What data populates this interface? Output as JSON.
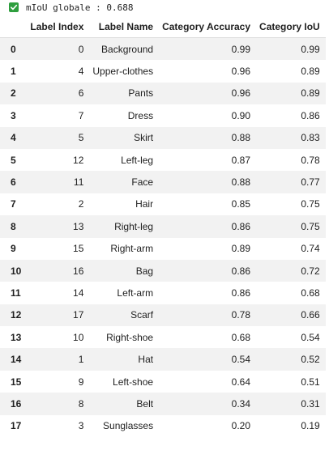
{
  "output": {
    "status_icon": "check-icon",
    "status_color": "#2e9e3e",
    "text": "mIoU globale : 0.688"
  },
  "table": {
    "columns": [
      "",
      "Label Index",
      "Label Name",
      "Category Accuracy",
      "Category IoU"
    ],
    "rows": [
      {
        "index": "0",
        "label_index": "0",
        "label_name": "Background",
        "accuracy": "0.99",
        "iou": "0.99"
      },
      {
        "index": "1",
        "label_index": "4",
        "label_name": "Upper-clothes",
        "accuracy": "0.96",
        "iou": "0.89"
      },
      {
        "index": "2",
        "label_index": "6",
        "label_name": "Pants",
        "accuracy": "0.96",
        "iou": "0.89"
      },
      {
        "index": "3",
        "label_index": "7",
        "label_name": "Dress",
        "accuracy": "0.90",
        "iou": "0.86"
      },
      {
        "index": "4",
        "label_index": "5",
        "label_name": "Skirt",
        "accuracy": "0.88",
        "iou": "0.83"
      },
      {
        "index": "5",
        "label_index": "12",
        "label_name": "Left-leg",
        "accuracy": "0.87",
        "iou": "0.78"
      },
      {
        "index": "6",
        "label_index": "11",
        "label_name": "Face",
        "accuracy": "0.88",
        "iou": "0.77"
      },
      {
        "index": "7",
        "label_index": "2",
        "label_name": "Hair",
        "accuracy": "0.85",
        "iou": "0.75"
      },
      {
        "index": "8",
        "label_index": "13",
        "label_name": "Right-leg",
        "accuracy": "0.86",
        "iou": "0.75"
      },
      {
        "index": "9",
        "label_index": "15",
        "label_name": "Right-arm",
        "accuracy": "0.89",
        "iou": "0.74"
      },
      {
        "index": "10",
        "label_index": "16",
        "label_name": "Bag",
        "accuracy": "0.86",
        "iou": "0.72"
      },
      {
        "index": "11",
        "label_index": "14",
        "label_name": "Left-arm",
        "accuracy": "0.86",
        "iou": "0.68"
      },
      {
        "index": "12",
        "label_index": "17",
        "label_name": "Scarf",
        "accuracy": "0.78",
        "iou": "0.66"
      },
      {
        "index": "13",
        "label_index": "10",
        "label_name": "Right-shoe",
        "accuracy": "0.68",
        "iou": "0.54"
      },
      {
        "index": "14",
        "label_index": "1",
        "label_name": "Hat",
        "accuracy": "0.54",
        "iou": "0.52"
      },
      {
        "index": "15",
        "label_index": "9",
        "label_name": "Left-shoe",
        "accuracy": "0.64",
        "iou": "0.51"
      },
      {
        "index": "16",
        "label_index": "8",
        "label_name": "Belt",
        "accuracy": "0.34",
        "iou": "0.31"
      },
      {
        "index": "17",
        "label_index": "3",
        "label_name": "Sunglasses",
        "accuracy": "0.20",
        "iou": "0.19"
      }
    ]
  }
}
